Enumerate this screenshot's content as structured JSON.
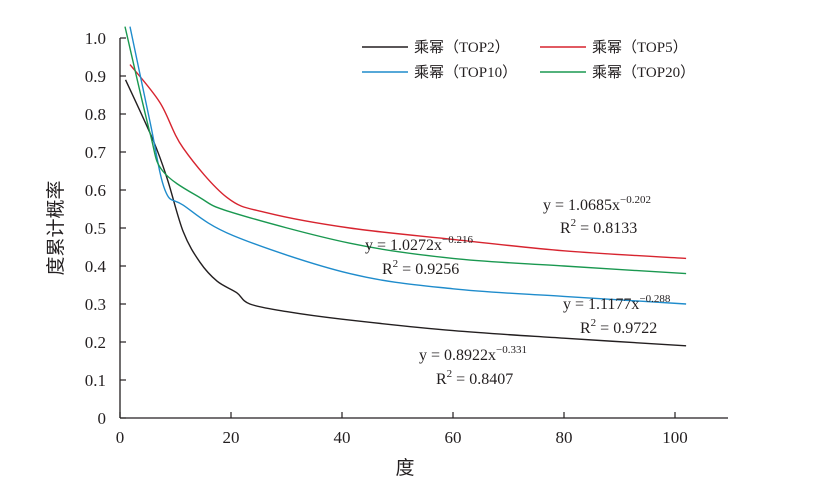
{
  "chart_data": {
    "type": "line",
    "title": "",
    "xlabel": "度",
    "ylabel": "度累计概率",
    "xlim": [
      0,
      110
    ],
    "ylim": [
      0,
      1.0
    ],
    "x_ticks": [
      "0",
      "20",
      "40",
      "60",
      "80",
      "100"
    ],
    "y_ticks": [
      "0",
      "0.1",
      "0.2",
      "0.3",
      "0.4",
      "0.5",
      "0.6",
      "0.7",
      "0.8",
      "0.9",
      "1.0"
    ],
    "grid": false,
    "legend_position": "top-right",
    "series": [
      {
        "name": "乘幂（TOP2）",
        "color": "#231f20",
        "x": [
          1,
          6,
          8.5,
          11.4,
          14.4,
          17.5,
          21,
          23.4,
          30,
          40,
          60,
          80,
          102
        ],
        "y": [
          0.89,
          0.73,
          0.63,
          0.49,
          0.41,
          0.36,
          0.33,
          0.3,
          0.28,
          0.26,
          0.23,
          0.21,
          0.19
        ]
      },
      {
        "name": "乘幂（TOP5）",
        "color": "#d7242f",
        "x": [
          1.8,
          7.2,
          11.4,
          19.3,
          26.5,
          41.4,
          60,
          80,
          102
        ],
        "y": [
          0.93,
          0.83,
          0.71,
          0.58,
          0.54,
          0.5,
          0.47,
          0.44,
          0.42
        ]
      },
      {
        "name": "乘幂（TOP10）",
        "color": "#1f8ccc",
        "x": [
          1.8,
          5.4,
          8.1,
          11.4,
          20.4,
          41.4,
          60,
          80,
          102
        ],
        "y": [
          1.03,
          0.78,
          0.6,
          0.56,
          0.48,
          0.38,
          0.34,
          0.32,
          0.3
        ]
      },
      {
        "name": "乘幂（TOP20）",
        "color": "#1a9850",
        "x": [
          0.9,
          5.4,
          7.7,
          14.4,
          20.4,
          41.4,
          60,
          80,
          102
        ],
        "y": [
          1.03,
          0.75,
          0.65,
          0.58,
          0.54,
          0.46,
          0.42,
          0.4,
          0.38
        ]
      }
    ],
    "annotations": [
      {
        "series": "乘幂（TOP5）",
        "equation": "y = 1.0685x",
        "exponent": "−0.202",
        "r2_label": "R",
        "r2_sup": "2",
        "r2_value": " = 0.8133"
      },
      {
        "series": "乘幂（TOP20）",
        "equation": "y = 1.0272x",
        "exponent": "−0.216",
        "r2_label": "R",
        "r2_sup": "2",
        "r2_value": " = 0.9256"
      },
      {
        "series": "乘幂（TOP10）",
        "equation": "y = 1.1177x",
        "exponent": "−0.288",
        "r2_label": "R",
        "r2_sup": "2",
        "r2_value": " = 0.9722"
      },
      {
        "series": "乘幂（TOP2）",
        "equation": "y = 0.8922x",
        "exponent": "−0.331",
        "r2_label": "R",
        "r2_sup": "2",
        "r2_value": " = 0.8407"
      }
    ]
  }
}
